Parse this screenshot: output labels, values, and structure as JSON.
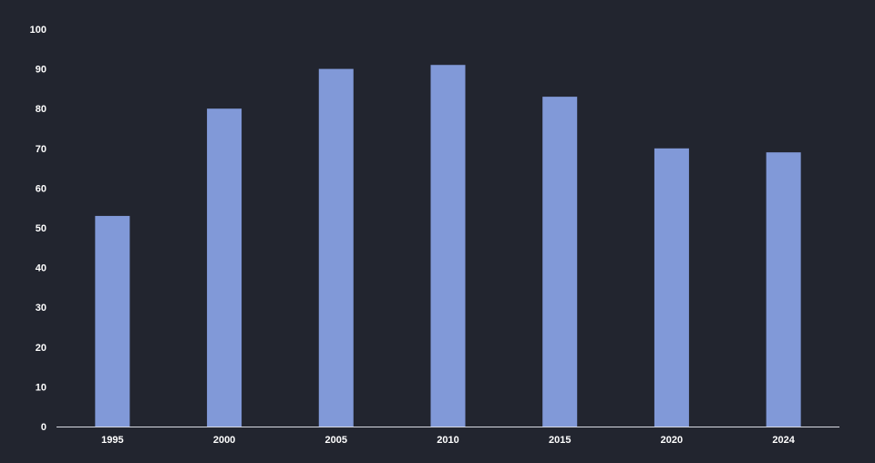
{
  "chart_data": {
    "type": "bar",
    "title": "",
    "xlabel": "",
    "ylabel": "",
    "categories": [
      "1995",
      "2000",
      "2005",
      "2010",
      "2015",
      "2020",
      "2024"
    ],
    "values": [
      53,
      80,
      90,
      91,
      83,
      70,
      69
    ],
    "ylim": [
      0,
      100
    ],
    "yticks": [
      "0",
      "10",
      "20",
      "30",
      "40",
      "50",
      "60",
      "70",
      "80",
      "90",
      "100"
    ],
    "grid": false,
    "legend": "none",
    "colors": {
      "background": "#22252f",
      "bar": "#8199d8",
      "axis": "#d9dbe3",
      "text": "#ffffff"
    }
  }
}
